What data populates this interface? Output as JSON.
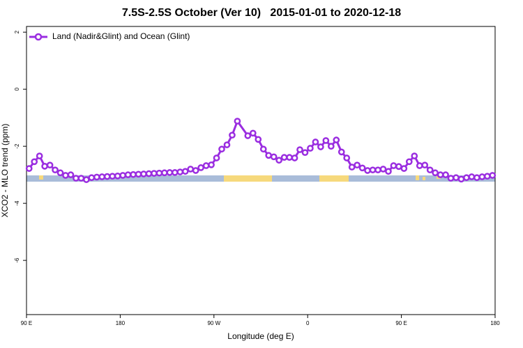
{
  "chart_data": {
    "type": "line",
    "title": "7.5S-2.5S October (Ver 10)   2015-01-01 to 2020-12-18",
    "xlabel": "Longitude (deg E)",
    "ylabel": "XCO2 - MLO trend (ppm)",
    "x": [
      92.5,
      97.5,
      102.5,
      107.5,
      112.5,
      117.5,
      122.5,
      127.5,
      132.5,
      137.5,
      142.5,
      147.5,
      152.5,
      157.5,
      162.5,
      167.5,
      172.5,
      177.5,
      182.5,
      187.5,
      192.5,
      197.5,
      202.5,
      207.5,
      212.5,
      217.5,
      222.5,
      227.5,
      232.5,
      237.5,
      242.5,
      247.5,
      252.5,
      257.5,
      262.5,
      267.5,
      272.5,
      277.5,
      282.5,
      287.5,
      292.5,
      302.5,
      307.5,
      312.5,
      317.5,
      322.5,
      327.5,
      332.5,
      337.5,
      342.5,
      347.5,
      352.5,
      357.5,
      362.5,
      367.5,
      372.5,
      377.5,
      382.5,
      387.5,
      392.5,
      397.5,
      402.5,
      407.5,
      412.5,
      417.5,
      422.5,
      427.5,
      432.5,
      437.5,
      442.5,
      447.5,
      452.5,
      457.5,
      462.5,
      467.5,
      472.5,
      477.5,
      482.5,
      487.5,
      492.5,
      497.5,
      502.5,
      507.5,
      512.5,
      517.5,
      522.5,
      527.5,
      532.5,
      537.5
    ],
    "series": [
      {
        "name": "Land (Nadir&Glint) and Ocean (Glint)",
        "color": "#9a2de0",
        "values": [
          -2.78,
          -2.54,
          -2.34,
          -2.7,
          -2.66,
          -2.83,
          -2.93,
          -3.02,
          -3.0,
          -3.12,
          -3.12,
          -3.17,
          -3.1,
          -3.08,
          -3.07,
          -3.06,
          -3.05,
          -3.04,
          -3.02,
          -3.0,
          -2.99,
          -2.98,
          -2.97,
          -2.96,
          -2.95,
          -2.94,
          -2.93,
          -2.92,
          -2.92,
          -2.9,
          -2.88,
          -2.8,
          -2.85,
          -2.75,
          -2.68,
          -2.65,
          -2.41,
          -2.1,
          -1.95,
          -1.61,
          -1.12,
          -1.63,
          -1.54,
          -1.76,
          -2.1,
          -2.32,
          -2.37,
          -2.49,
          -2.39,
          -2.39,
          -2.41,
          -2.12,
          -2.22,
          -2.07,
          -1.85,
          -2.02,
          -1.8,
          -2.0,
          -1.78,
          -2.2,
          -2.41,
          -2.73,
          -2.66,
          -2.76,
          -2.85,
          -2.83,
          -2.83,
          -2.8,
          -2.88,
          -2.68,
          -2.71,
          -2.78,
          -2.54,
          -2.34,
          -2.68,
          -2.66,
          -2.83,
          -2.93,
          -3.0,
          -3.0,
          -3.12,
          -3.1,
          -3.15,
          -3.1,
          -3.07,
          -3.1,
          -3.07,
          -3.05,
          -3.02
        ]
      }
    ],
    "xlim": [
      90,
      540
    ],
    "xticks": [
      {
        "value": 90,
        "label": "90 E"
      },
      180,
      {
        "value": 270,
        "label": "90 W"
      },
      {
        "value": 360,
        "label": "0"
      },
      {
        "value": 450,
        "label": "90 E"
      },
      {
        "value": 540,
        "label": "180"
      }
    ],
    "ylim": [
      -7.9,
      2.2
    ],
    "yticks": [
      -6,
      -4,
      -2,
      0,
      2
    ],
    "legend": "top-left"
  }
}
